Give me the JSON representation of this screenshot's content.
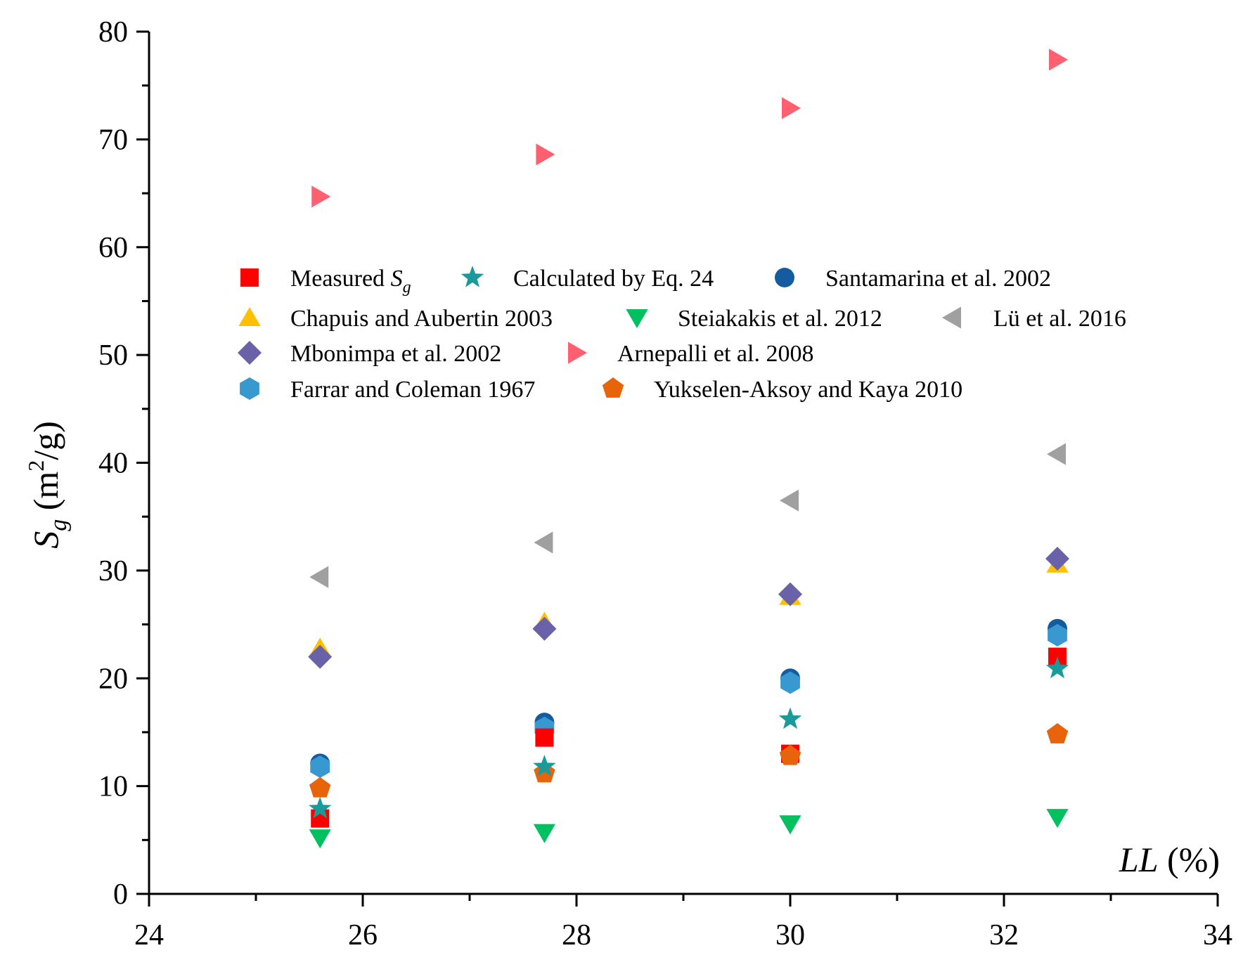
{
  "chart_data": {
    "type": "scatter",
    "title": "",
    "xlabel": {
      "italic": "LL",
      "plain": " (%)"
    },
    "ylabel": {
      "main": "S",
      "sub": "g",
      "unit_open": " (m",
      "sup": "2",
      "unit_close": "/g)"
    },
    "xlim": [
      24,
      34
    ],
    "ylim": [
      0,
      80
    ],
    "x_major_ticks": [
      24,
      26,
      28,
      30,
      32,
      34
    ],
    "x_minor_ticks": [
      25,
      27,
      29,
      31,
      33
    ],
    "y_major_ticks": [
      0,
      10,
      20,
      30,
      40,
      50,
      60,
      70,
      80
    ],
    "y_minor_ticks": [
      5,
      15,
      25,
      35,
      45,
      55,
      65,
      75
    ],
    "x": [
      25.6,
      27.7,
      30.0,
      32.5
    ],
    "legend_position": "upper-center",
    "series": [
      {
        "name": "Measured ",
        "name_italic": "S",
        "name_sub": "g",
        "marker": "square",
        "color": "#ff0000",
        "values": [
          7.0,
          14.5,
          13.0,
          22.0
        ]
      },
      {
        "name": "Calculated by Eq. 24",
        "marker": "star",
        "color": "#1a9a9a",
        "values": [
          7.9,
          11.8,
          16.2,
          20.9
        ]
      },
      {
        "name": "Santamarina et al. 2002",
        "marker": "circle",
        "color": "#135c9f",
        "values": [
          12.1,
          15.9,
          20.0,
          24.6
        ]
      },
      {
        "name": "Chapuis and Aubertin 2003",
        "marker": "triangle-up",
        "color": "#ffc000",
        "values": [
          22.8,
          25.2,
          27.6,
          30.6
        ]
      },
      {
        "name": "Steiakakis et al. 2012",
        "marker": "triangle-down",
        "color": "#00c060",
        "values": [
          5.2,
          5.7,
          6.5,
          7.1
        ]
      },
      {
        "name": "Lü et al. 2016",
        "marker": "triangle-left",
        "color": "#a0a0a0",
        "values": [
          29.4,
          32.6,
          36.5,
          40.8
        ]
      },
      {
        "name": "Mbonimpa et al. 2002",
        "marker": "diamond",
        "color": "#6a62a8",
        "values": [
          22.0,
          24.6,
          27.8,
          31.1
        ]
      },
      {
        "name": "Arnepalli et al. 2008",
        "marker": "triangle-right",
        "color": "#ff6070",
        "values": [
          64.7,
          68.6,
          72.9,
          77.4
        ]
      },
      {
        "name": "Farrar and Coleman 1967",
        "marker": "hexagon",
        "color": "#3898d0",
        "values": [
          11.8,
          15.4,
          19.6,
          24.0
        ]
      },
      {
        "name": "Yukselen-Aksoy and Kaya 2010",
        "marker": "pentagon",
        "color": "#e8640a",
        "values": [
          9.8,
          11.2,
          12.8,
          14.8
        ]
      }
    ]
  }
}
